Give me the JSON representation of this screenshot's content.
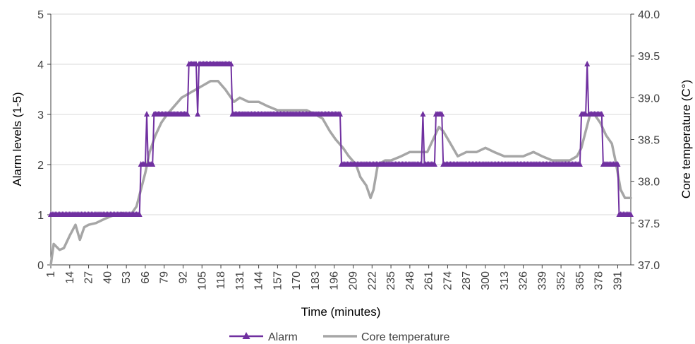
{
  "chart_data": {
    "type": "line",
    "xlabel": "Time (minutes)",
    "ylabel_left": "Alarm levels (1-5)",
    "ylabel_right": "Core temperature (C°)",
    "ylim_left": [
      0,
      5
    ],
    "ylim_right": [
      37.0,
      40.0
    ],
    "xlim": [
      1,
      400
    ],
    "grid": true,
    "legend_position": "bottom",
    "x_ticks": [
      "1",
      "14",
      "27",
      "40",
      "53",
      "66",
      "79",
      "92",
      "105",
      "118",
      "131",
      "144",
      "157",
      "170",
      "183",
      "196",
      "209",
      "222",
      "235",
      "248",
      "261",
      "274",
      "287",
      "300",
      "313",
      "326",
      "339",
      "352",
      "365",
      "378",
      "391"
    ],
    "y_ticks_left": [
      "0",
      "1",
      "2",
      "3",
      "4",
      "5"
    ],
    "y_ticks_right": [
      "37.0",
      "37.5",
      "38.0",
      "38.5",
      "39.0",
      "39.5",
      "40.0"
    ],
    "colors": {
      "alarm": "#7030A0",
      "temperature": "#A6A6A6",
      "grid": "#D9D9D9"
    },
    "series": [
      {
        "name": "Alarm",
        "axis": "left",
        "marker": "triangle",
        "step_points": [
          [
            1,
            1
          ],
          [
            62,
            1
          ],
          [
            63,
            2
          ],
          [
            66,
            2
          ],
          [
            67,
            3
          ],
          [
            68,
            2
          ],
          [
            71,
            2
          ],
          [
            72,
            3
          ],
          [
            95,
            3
          ],
          [
            96,
            4
          ],
          [
            101,
            4
          ],
          [
            102,
            3
          ],
          [
            103,
            4
          ],
          [
            125,
            4
          ],
          [
            126,
            3
          ],
          [
            200,
            3
          ],
          [
            201,
            2
          ],
          [
            256,
            2
          ],
          [
            257,
            3
          ],
          [
            258,
            2
          ],
          [
            265,
            2
          ],
          [
            266,
            3
          ],
          [
            270,
            3
          ],
          [
            271,
            2
          ],
          [
            365,
            2
          ],
          [
            366,
            3
          ],
          [
            369,
            3
          ],
          [
            370,
            4
          ],
          [
            371,
            3
          ],
          [
            380,
            3
          ],
          [
            381,
            2
          ],
          [
            391,
            2
          ],
          [
            392,
            1
          ],
          [
            400,
            1
          ]
        ]
      },
      {
        "name": "Core temperature",
        "axis": "right",
        "points": [
          [
            1,
            37.0
          ],
          [
            3,
            37.25
          ],
          [
            7,
            37.18
          ],
          [
            10,
            37.2
          ],
          [
            14,
            37.35
          ],
          [
            18,
            37.48
          ],
          [
            21,
            37.3
          ],
          [
            24,
            37.45
          ],
          [
            27,
            37.48
          ],
          [
            32,
            37.5
          ],
          [
            38,
            37.55
          ],
          [
            45,
            37.6
          ],
          [
            50,
            37.62
          ],
          [
            56,
            37.6
          ],
          [
            60,
            37.7
          ],
          [
            63,
            37.9
          ],
          [
            66,
            38.1
          ],
          [
            69,
            38.35
          ],
          [
            73,
            38.55
          ],
          [
            77,
            38.7
          ],
          [
            81,
            38.8
          ],
          [
            86,
            38.9
          ],
          [
            91,
            39.0
          ],
          [
            96,
            39.05
          ],
          [
            101,
            39.1
          ],
          [
            106,
            39.15
          ],
          [
            111,
            39.2
          ],
          [
            116,
            39.2
          ],
          [
            121,
            39.1
          ],
          [
            127,
            38.95
          ],
          [
            131,
            39.0
          ],
          [
            137,
            38.95
          ],
          [
            144,
            38.95
          ],
          [
            150,
            38.9
          ],
          [
            157,
            38.85
          ],
          [
            163,
            38.85
          ],
          [
            170,
            38.85
          ],
          [
            177,
            38.85
          ],
          [
            183,
            38.8
          ],
          [
            188,
            38.75
          ],
          [
            193,
            38.6
          ],
          [
            197,
            38.5
          ],
          [
            202,
            38.4
          ],
          [
            206,
            38.3
          ],
          [
            211,
            38.2
          ],
          [
            214,
            38.05
          ],
          [
            218,
            37.95
          ],
          [
            221,
            37.8
          ],
          [
            223,
            37.9
          ],
          [
            226,
            38.2
          ],
          [
            231,
            38.25
          ],
          [
            235,
            38.25
          ],
          [
            242,
            38.3
          ],
          [
            248,
            38.35
          ],
          [
            255,
            38.35
          ],
          [
            260,
            38.35
          ],
          [
            264,
            38.5
          ],
          [
            268,
            38.65
          ],
          [
            271,
            38.6
          ],
          [
            276,
            38.45
          ],
          [
            281,
            38.3
          ],
          [
            287,
            38.35
          ],
          [
            294,
            38.35
          ],
          [
            300,
            38.4
          ],
          [
            306,
            38.35
          ],
          [
            313,
            38.3
          ],
          [
            320,
            38.3
          ],
          [
            326,
            38.3
          ],
          [
            333,
            38.35
          ],
          [
            339,
            38.3
          ],
          [
            346,
            38.25
          ],
          [
            352,
            38.25
          ],
          [
            358,
            38.25
          ],
          [
            363,
            38.3
          ],
          [
            366,
            38.4
          ],
          [
            369,
            38.6
          ],
          [
            372,
            38.8
          ],
          [
            375,
            38.8
          ],
          [
            379,
            38.7
          ],
          [
            383,
            38.55
          ],
          [
            387,
            38.45
          ],
          [
            390,
            38.2
          ],
          [
            393,
            37.9
          ],
          [
            396,
            37.8
          ],
          [
            400,
            37.8
          ]
        ]
      }
    ]
  }
}
